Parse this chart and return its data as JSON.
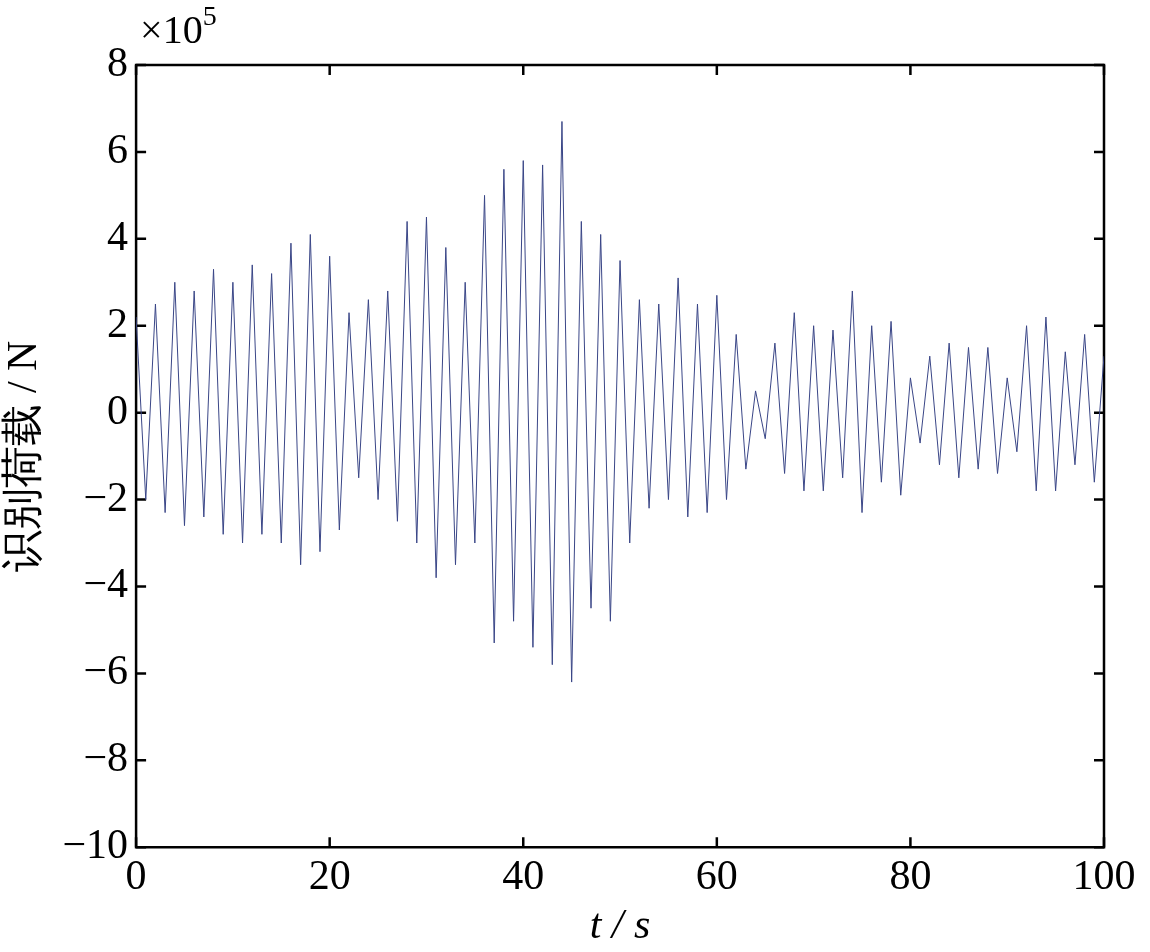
{
  "chart_data": {
    "type": "line",
    "xlabel": "t / s",
    "ylabel": "识别荷载 / N",
    "annotations": [
      "×10$^{5}$"
    ],
    "x": [
      0,
      1,
      2,
      3,
      4,
      5,
      6,
      7,
      8,
      9,
      10,
      11,
      12,
      13,
      14,
      15,
      16,
      17,
      18,
      19,
      20,
      21,
      22,
      23,
      24,
      25,
      26,
      27,
      28,
      29,
      30,
      31,
      32,
      33,
      34,
      35,
      36,
      37,
      38,
      39,
      40,
      41,
      42,
      43,
      44,
      45,
      46,
      47,
      48,
      49,
      50,
      51,
      52,
      53,
      54,
      55,
      56,
      57,
      58,
      59,
      60,
      61,
      62,
      63,
      64,
      65,
      66,
      67,
      68,
      69,
      70,
      71,
      72,
      73,
      74,
      75,
      76,
      77,
      78,
      79,
      80,
      81,
      82,
      83,
      84,
      85,
      86,
      87,
      88,
      89,
      90,
      91,
      92,
      93,
      94,
      95,
      96,
      97,
      98,
      99,
      100
    ],
    "series": [
      {
        "color": "#3a4687",
        "values": [
          2.2,
          -2.0,
          2.5,
          -2.3,
          3.0,
          -2.6,
          2.8,
          -2.4,
          3.3,
          -2.8,
          3.0,
          -3.0,
          3.4,
          -2.8,
          3.2,
          -3.0,
          3.9,
          -3.5,
          4.1,
          -3.2,
          3.6,
          -2.7,
          2.3,
          -1.5,
          2.6,
          -2.0,
          2.8,
          -2.5,
          4.4,
          -3.0,
          4.5,
          -3.8,
          3.8,
          -3.5,
          3.0,
          -3.0,
          5.0,
          -5.3,
          5.6,
          -4.8,
          5.8,
          -5.4,
          5.7,
          -5.8,
          6.7,
          -6.2,
          4.4,
          -4.5,
          4.1,
          -4.8,
          3.5,
          -3.0,
          2.6,
          -2.2,
          2.5,
          -2.0,
          3.1,
          -2.4,
          2.5,
          -2.3,
          2.7,
          -2.0,
          1.8,
          -1.3,
          0.5,
          -0.6,
          1.6,
          -1.4,
          2.3,
          -1.8,
          2.0,
          -1.8,
          1.9,
          -1.5,
          2.8,
          -2.3,
          2.0,
          -1.6,
          2.1,
          -1.9,
          0.8,
          -0.7,
          1.3,
          -1.2,
          1.6,
          -1.5,
          1.5,
          -1.3,
          1.5,
          -1.4,
          0.8,
          -0.9,
          2.0,
          -1.8,
          2.2,
          -1.8,
          1.4,
          -1.2,
          1.8,
          -1.6,
          1.3
        ]
      }
    ],
    "xlim": [
      0,
      100
    ],
    "xticks": [
      0,
      20,
      40,
      60,
      80,
      100
    ],
    "ylim": [
      -10,
      8
    ],
    "yticks": [
      {
        "value": -10,
        "label": "−10"
      },
      {
        "value": -8,
        "label": "−8"
      },
      {
        "value": -6,
        "label": "−6"
      },
      {
        "value": -4,
        "label": "−4"
      },
      {
        "value": -2,
        "label": "−2"
      },
      0,
      2,
      4,
      6,
      8
    ],
    "grid": false,
    "legend": false,
    "marker": "none",
    "line_style": "solid"
  }
}
